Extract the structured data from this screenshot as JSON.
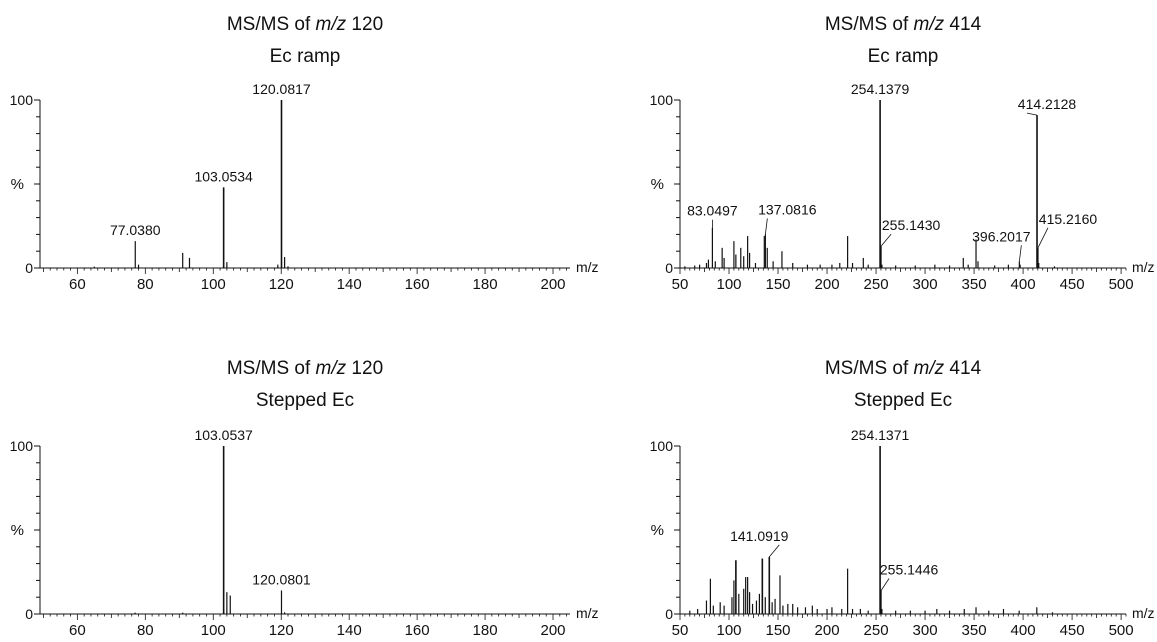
{
  "chart_data": [
    {
      "type": "bar",
      "title_prefix": "MS/MS of",
      "title_italic": "m/z",
      "title_suffix": "120",
      "subtitle": "Ec ramp",
      "xlabel": "m/z",
      "ylabel": "%",
      "xlim": [
        49,
        205
      ],
      "ylim": [
        0,
        100
      ],
      "xticks": [
        60,
        80,
        100,
        120,
        140,
        160,
        180,
        200
      ],
      "yticks": [
        0,
        100
      ],
      "peaks": [
        {
          "mz": 65,
          "intensity": 0.8
        },
        {
          "mz": 77.038,
          "intensity": 16
        },
        {
          "mz": 78,
          "intensity": 2
        },
        {
          "mz": 91,
          "intensity": 9
        },
        {
          "mz": 93,
          "intensity": 6
        },
        {
          "mz": 103.0534,
          "intensity": 48
        },
        {
          "mz": 104,
          "intensity": 3.5
        },
        {
          "mz": 119,
          "intensity": 2
        },
        {
          "mz": 120.0817,
          "intensity": 100
        },
        {
          "mz": 121,
          "intensity": 6.5
        },
        {
          "mz": 122,
          "intensity": 1
        }
      ],
      "labels": [
        {
          "mz": 77.038,
          "intensity": 16,
          "text": "77.0380"
        },
        {
          "mz": 103.0534,
          "intensity": 48,
          "text": "103.0534"
        },
        {
          "mz": 120.0817,
          "intensity": 100,
          "text": "120.0817"
        }
      ]
    },
    {
      "type": "bar",
      "title_prefix": "MS/MS of",
      "title_italic": "m/z",
      "title_suffix": "414",
      "subtitle": "Ec ramp",
      "xlabel": "m/z",
      "ylabel": "%",
      "xlim": [
        50,
        505
      ],
      "ylim": [
        0,
        100
      ],
      "xticks": [
        50,
        100,
        150,
        200,
        250,
        300,
        350,
        400,
        450,
        500
      ],
      "yticks": [
        0,
        100
      ],
      "peaks": [
        {
          "mz": 55,
          "intensity": 1
        },
        {
          "mz": 65,
          "intensity": 1.5
        },
        {
          "mz": 70,
          "intensity": 2
        },
        {
          "mz": 77,
          "intensity": 3
        },
        {
          "mz": 79,
          "intensity": 5
        },
        {
          "mz": 83.0497,
          "intensity": 24
        },
        {
          "mz": 86,
          "intensity": 4
        },
        {
          "mz": 93,
          "intensity": 12
        },
        {
          "mz": 95,
          "intensity": 6
        },
        {
          "mz": 105,
          "intensity": 16
        },
        {
          "mz": 107,
          "intensity": 8
        },
        {
          "mz": 112,
          "intensity": 12
        },
        {
          "mz": 115,
          "intensity": 7
        },
        {
          "mz": 119,
          "intensity": 19
        },
        {
          "mz": 121,
          "intensity": 9
        },
        {
          "mz": 127,
          "intensity": 3
        },
        {
          "mz": 136,
          "intensity": 19
        },
        {
          "mz": 137.0816,
          "intensity": 20
        },
        {
          "mz": 139,
          "intensity": 12
        },
        {
          "mz": 145,
          "intensity": 4
        },
        {
          "mz": 154,
          "intensity": 10
        },
        {
          "mz": 165,
          "intensity": 3
        },
        {
          "mz": 180,
          "intensity": 2
        },
        {
          "mz": 193,
          "intensity": 2
        },
        {
          "mz": 205,
          "intensity": 2
        },
        {
          "mz": 213,
          "intensity": 3
        },
        {
          "mz": 221,
          "intensity": 19
        },
        {
          "mz": 226,
          "intensity": 3
        },
        {
          "mz": 237,
          "intensity": 6
        },
        {
          "mz": 242,
          "intensity": 2
        },
        {
          "mz": 254.1379,
          "intensity": 100
        },
        {
          "mz": 255.143,
          "intensity": 13
        },
        {
          "mz": 256,
          "intensity": 2
        },
        {
          "mz": 270,
          "intensity": 1.5
        },
        {
          "mz": 290,
          "intensity": 1.5
        },
        {
          "mz": 310,
          "intensity": 2
        },
        {
          "mz": 325,
          "intensity": 1.5
        },
        {
          "mz": 339,
          "intensity": 6
        },
        {
          "mz": 344,
          "intensity": 2
        },
        {
          "mz": 352,
          "intensity": 17
        },
        {
          "mz": 354,
          "intensity": 4
        },
        {
          "mz": 371,
          "intensity": 1.5
        },
        {
          "mz": 385,
          "intensity": 2
        },
        {
          "mz": 396.2017,
          "intensity": 4
        },
        {
          "mz": 397,
          "intensity": 2
        },
        {
          "mz": 414.2128,
          "intensity": 91
        },
        {
          "mz": 415.216,
          "intensity": 12
        },
        {
          "mz": 416,
          "intensity": 3
        },
        {
          "mz": 432,
          "intensity": 1
        }
      ],
      "labels": [
        {
          "mz": 83.0497,
          "intensity": 24,
          "text": "83.0497"
        },
        {
          "mz": 137.0816,
          "intensity": 20,
          "text": "137.0816"
        },
        {
          "mz": 254.1379,
          "intensity": 100,
          "text": "254.1379"
        },
        {
          "mz": 255.143,
          "intensity": 13,
          "text": "255.1430"
        },
        {
          "mz": 396.2017,
          "intensity": 4,
          "text": "396.2017"
        },
        {
          "mz": 414.2128,
          "intensity": 91,
          "text": "414.2128"
        },
        {
          "mz": 415.216,
          "intensity": 12,
          "text": "415.2160"
        }
      ]
    },
    {
      "type": "bar",
      "title_prefix": "MS/MS of",
      "title_italic": "m/z",
      "title_suffix": "120",
      "subtitle": "Stepped Ec",
      "xlabel": "m/z",
      "ylabel": "%",
      "xlim": [
        49,
        205
      ],
      "ylim": [
        0,
        100
      ],
      "xticks": [
        60,
        80,
        100,
        120,
        140,
        160,
        180,
        200
      ],
      "yticks": [
        0,
        100
      ],
      "peaks": [
        {
          "mz": 77,
          "intensity": 0.8
        },
        {
          "mz": 91,
          "intensity": 0.8
        },
        {
          "mz": 103.0537,
          "intensity": 100
        },
        {
          "mz": 104,
          "intensity": 13
        },
        {
          "mz": 105,
          "intensity": 11
        },
        {
          "mz": 120.0801,
          "intensity": 14
        },
        {
          "mz": 121,
          "intensity": 1
        }
      ],
      "labels": [
        {
          "mz": 103.0537,
          "intensity": 100,
          "text": "103.0537"
        },
        {
          "mz": 120.0801,
          "intensity": 14,
          "text": "120.0801"
        }
      ]
    },
    {
      "type": "bar",
      "title_prefix": "MS/MS of",
      "title_italic": "m/z",
      "title_suffix": "414",
      "subtitle": "Stepped Ec",
      "xlabel": "m/z",
      "ylabel": "%",
      "xlim": [
        50,
        505
      ],
      "ylim": [
        0,
        100
      ],
      "xticks": [
        50,
        100,
        150,
        200,
        250,
        300,
        350,
        400,
        450,
        500
      ],
      "yticks": [
        0,
        100
      ],
      "peaks": [
        {
          "mz": 60,
          "intensity": 2
        },
        {
          "mz": 68,
          "intensity": 3
        },
        {
          "mz": 77,
          "intensity": 8
        },
        {
          "mz": 81,
          "intensity": 21
        },
        {
          "mz": 84,
          "intensity": 5
        },
        {
          "mz": 91,
          "intensity": 7
        },
        {
          "mz": 95,
          "intensity": 5
        },
        {
          "mz": 103,
          "intensity": 10
        },
        {
          "mz": 105,
          "intensity": 20
        },
        {
          "mz": 107,
          "intensity": 32
        },
        {
          "mz": 110,
          "intensity": 12
        },
        {
          "mz": 115,
          "intensity": 15
        },
        {
          "mz": 117,
          "intensity": 22
        },
        {
          "mz": 119,
          "intensity": 22
        },
        {
          "mz": 121,
          "intensity": 13
        },
        {
          "mz": 124,
          "intensity": 6
        },
        {
          "mz": 128,
          "intensity": 8
        },
        {
          "mz": 131,
          "intensity": 12
        },
        {
          "mz": 134,
          "intensity": 33
        },
        {
          "mz": 137,
          "intensity": 10
        },
        {
          "mz": 141.0919,
          "intensity": 34
        },
        {
          "mz": 144,
          "intensity": 7
        },
        {
          "mz": 147,
          "intensity": 9
        },
        {
          "mz": 152,
          "intensity": 23
        },
        {
          "mz": 155,
          "intensity": 5
        },
        {
          "mz": 160,
          "intensity": 6
        },
        {
          "mz": 165,
          "intensity": 6
        },
        {
          "mz": 170,
          "intensity": 4
        },
        {
          "mz": 178,
          "intensity": 4
        },
        {
          "mz": 185,
          "intensity": 5
        },
        {
          "mz": 190,
          "intensity": 3
        },
        {
          "mz": 200,
          "intensity": 3
        },
        {
          "mz": 205,
          "intensity": 4
        },
        {
          "mz": 215,
          "intensity": 3
        },
        {
          "mz": 221,
          "intensity": 27
        },
        {
          "mz": 226,
          "intensity": 3
        },
        {
          "mz": 234,
          "intensity": 3
        },
        {
          "mz": 242,
          "intensity": 2
        },
        {
          "mz": 254.1371,
          "intensity": 100
        },
        {
          "mz": 255.1446,
          "intensity": 14
        },
        {
          "mz": 256,
          "intensity": 3
        },
        {
          "mz": 270,
          "intensity": 2
        },
        {
          "mz": 285,
          "intensity": 2
        },
        {
          "mz": 300,
          "intensity": 2
        },
        {
          "mz": 312,
          "intensity": 3
        },
        {
          "mz": 325,
          "intensity": 2
        },
        {
          "mz": 340,
          "intensity": 3
        },
        {
          "mz": 352,
          "intensity": 4
        },
        {
          "mz": 365,
          "intensity": 2
        },
        {
          "mz": 380,
          "intensity": 3
        },
        {
          "mz": 396,
          "intensity": 2
        },
        {
          "mz": 414,
          "intensity": 4
        },
        {
          "mz": 430,
          "intensity": 1
        }
      ],
      "labels": [
        {
          "mz": 141.0919,
          "intensity": 34,
          "text": "141.0919"
        },
        {
          "mz": 254.1371,
          "intensity": 100,
          "text": "254.1371"
        },
        {
          "mz": 255.1446,
          "intensity": 14,
          "text": "255.1446"
        }
      ]
    }
  ]
}
